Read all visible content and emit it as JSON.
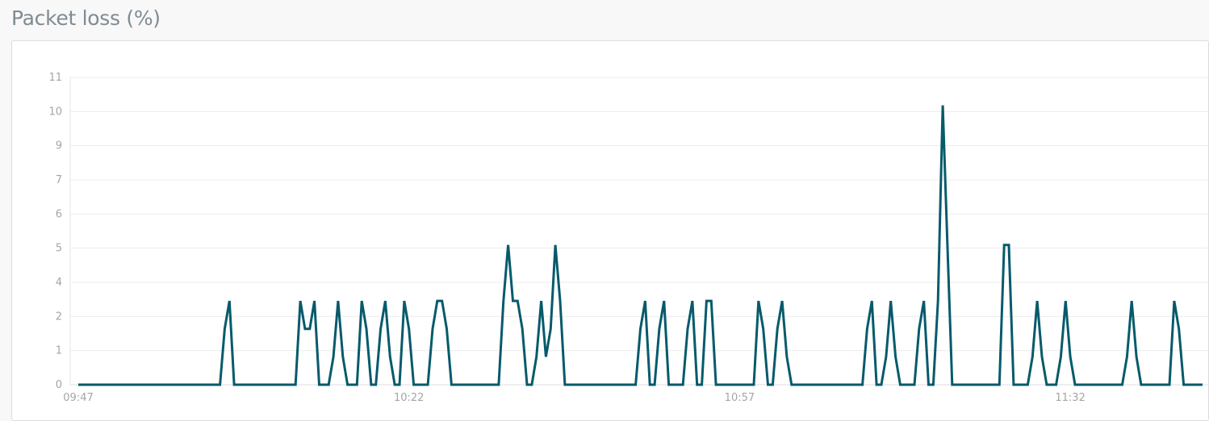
{
  "panel": {
    "title": "Packet loss (%)"
  },
  "chart_data": {
    "type": "line",
    "title": "Packet loss (%)",
    "xlabel": "",
    "ylabel": "",
    "x_start": "09:47:00",
    "x_interval_seconds": 30,
    "x_tick_labels": [
      "09:47",
      "10:22",
      "10:57",
      "11:32"
    ],
    "y_tick_labels": [
      "0",
      "1",
      "2",
      "4",
      "5",
      "6",
      "7",
      "9",
      "10",
      "11"
    ],
    "ylim": [
      0,
      11
    ],
    "grid": true,
    "legend": "none",
    "line_color": "#065a6b",
    "series": [
      {
        "values": [
          0,
          0,
          0,
          0,
          0,
          0,
          0,
          0,
          0,
          0,
          0,
          0,
          0,
          0,
          0,
          0,
          0,
          0,
          0,
          0,
          0,
          0,
          0,
          0,
          0,
          0,
          0,
          0,
          0,
          0,
          0,
          2,
          3,
          0,
          0,
          0,
          0,
          0,
          0,
          0,
          0,
          0,
          0,
          0,
          0,
          0,
          0,
          3,
          2,
          2,
          3,
          0,
          0,
          0,
          1,
          3,
          1,
          0,
          0,
          0,
          3,
          2,
          0,
          0,
          2,
          3,
          1,
          0,
          0,
          3,
          2,
          0,
          0,
          0,
          0,
          2,
          3,
          3,
          2,
          0,
          0,
          0,
          0,
          0,
          0,
          0,
          0,
          0,
          0,
          0,
          3,
          5,
          3,
          3,
          2,
          0,
          0,
          1,
          3,
          1,
          2,
          5,
          3,
          0,
          0,
          0,
          0,
          0,
          0,
          0,
          0,
          0,
          0,
          0,
          0,
          0,
          0,
          0,
          0,
          2,
          3,
          0,
          0,
          2,
          3,
          0,
          0,
          0,
          0,
          2,
          3,
          0,
          0,
          3,
          3,
          0,
          0,
          0,
          0,
          0,
          0,
          0,
          0,
          0,
          3,
          2,
          0,
          0,
          2,
          3,
          1,
          0,
          0,
          0,
          0,
          0,
          0,
          0,
          0,
          0,
          0,
          0,
          0,
          0,
          0,
          0,
          0,
          2,
          3,
          0,
          0,
          1,
          3,
          1,
          0,
          0,
          0,
          0,
          2,
          3,
          0,
          0,
          3,
          10,
          5,
          0,
          0,
          0,
          0,
          0,
          0,
          0,
          0,
          0,
          0,
          0,
          5,
          5,
          0,
          0,
          0,
          0,
          1,
          3,
          1,
          0,
          0,
          0,
          1,
          3,
          1,
          0,
          0,
          0,
          0,
          0,
          0,
          0,
          0,
          0,
          0,
          0,
          1,
          3,
          1,
          0,
          0,
          0,
          0,
          0,
          0,
          0,
          3,
          2,
          0,
          0,
          0,
          0,
          0
        ]
      }
    ]
  }
}
